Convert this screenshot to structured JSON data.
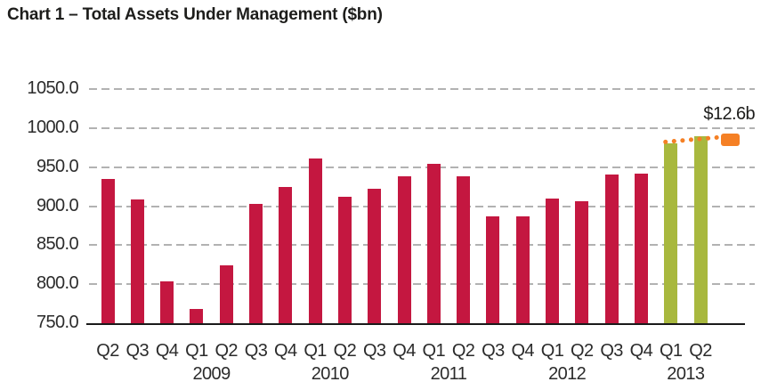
{
  "header": {
    "title": "Chart 1 – Total Assets Under Management ($bn)"
  },
  "chart_data": {
    "type": "bar",
    "title": "Chart 1 – Total Assets Under Management ($bn)",
    "xlabel": "",
    "ylabel": "",
    "ylim": [
      750,
      1050
    ],
    "ytick_step": 50,
    "ytick_decimals": 1,
    "grid": "horizontal-dashed",
    "legend": "none",
    "categories": [
      "Q2",
      "Q3",
      "Q4",
      "Q1",
      "Q2",
      "Q3",
      "Q4",
      "Q1",
      "Q2",
      "Q3",
      "Q4",
      "Q1",
      "Q2",
      "Q3",
      "Q4",
      "Q1",
      "Q2",
      "Q3",
      "Q4",
      "Q1",
      "Q2"
    ],
    "values": [
      935,
      908,
      804,
      768,
      824,
      903,
      924,
      961,
      912,
      922,
      938,
      954,
      938,
      887,
      887,
      910,
      906,
      940,
      942,
      980,
      990
    ],
    "year_groups": [
      {
        "label": "2009",
        "between_indices": [
          3,
          4
        ]
      },
      {
        "label": "2010",
        "between_indices": [
          7,
          8
        ]
      },
      {
        "label": "2011",
        "between_indices": [
          11,
          12
        ]
      },
      {
        "label": "2012",
        "between_indices": [
          15,
          16
        ]
      },
      {
        "label": "2013",
        "between_indices": [
          19,
          20
        ]
      }
    ],
    "highlight_indices": [
      19,
      20
    ],
    "annotation": {
      "label": "$12.6b",
      "marker_value": 985,
      "from_index": 19,
      "style": "orange dotted line to rounded square marker"
    },
    "colors": {
      "bar_default": "#c41740",
      "bar_highlight": "#a8b83e",
      "annotation": "#f58025",
      "gridline": "#b2b2b2",
      "axis_line": "#1a1a1a",
      "tick_text": "#2b2b2b",
      "title_text": "#1d1d1b"
    }
  }
}
